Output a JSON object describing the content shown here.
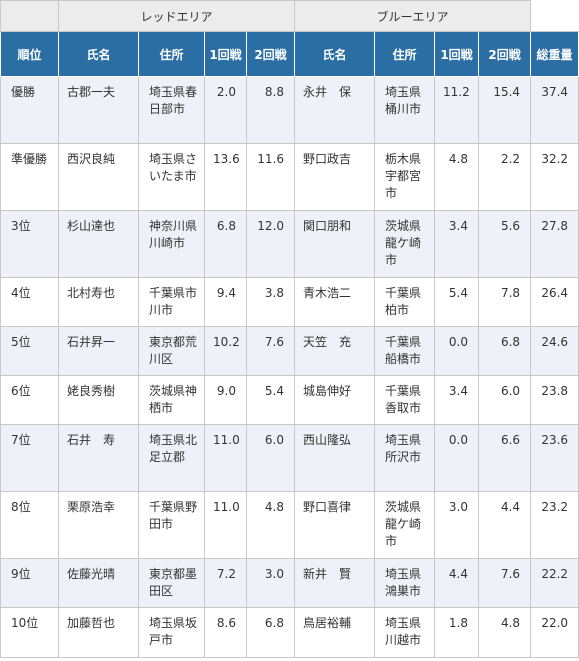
{
  "groups": {
    "red": "レッドエリア",
    "blue": "ブルーエリア"
  },
  "headers": {
    "rank": "順位",
    "red_name": "氏名",
    "red_address": "住所",
    "red_round1": "1回戦",
    "red_round2": "2回戦",
    "blue_name": "氏名",
    "blue_address": "住所",
    "blue_round1": "1回戦",
    "blue_round2": "2回戦",
    "total": "総重量"
  },
  "rows": [
    {
      "rank": "優勝",
      "red_name": "古郡一夫",
      "red_address": "埼玉県春日部市",
      "red_r1": "2.0",
      "red_r2": "8.8",
      "blue_name": "永井　保",
      "blue_address": "埼玉県桶川市",
      "blue_r1": "11.2",
      "blue_r2": "15.4",
      "total": "37.4"
    },
    {
      "rank": "準優勝",
      "red_name": "西沢良純",
      "red_address": "埼玉県さいたま市",
      "red_r1": "13.6",
      "red_r2": "11.6",
      "blue_name": "野口政吉",
      "blue_address": "栃木県宇都宮市",
      "blue_r1": "4.8",
      "blue_r2": "2.2",
      "total": "32.2"
    },
    {
      "rank": "3位",
      "red_name": "杉山達也",
      "red_address": "神奈川県川崎市",
      "red_r1": "6.8",
      "red_r2": "12.0",
      "blue_name": "関口朋和",
      "blue_address": "茨城県龍ケ崎市",
      "blue_r1": "3.4",
      "blue_r2": "5.6",
      "total": "27.8"
    },
    {
      "rank": "4位",
      "red_name": "北村寿也",
      "red_address": "千葉県市川市",
      "red_r1": "9.4",
      "red_r2": "3.8",
      "blue_name": "青木浩二",
      "blue_address": "千葉県柏市",
      "blue_r1": "5.4",
      "blue_r2": "7.8",
      "total": "26.4"
    },
    {
      "rank": "5位",
      "red_name": "石井昇一",
      "red_address": "東京都荒川区",
      "red_r1": "10.2",
      "red_r2": "7.6",
      "blue_name": "天笠　充",
      "blue_address": "千葉県船橋市",
      "blue_r1": "0.0",
      "blue_r2": "6.8",
      "total": "24.6"
    },
    {
      "rank": "6位",
      "red_name": "姥良秀樹",
      "red_address": "茨城県神栖市",
      "red_r1": "9.0",
      "red_r2": "5.4",
      "blue_name": "城島伸好",
      "blue_address": "千葉県香取市",
      "blue_r1": "3.4",
      "blue_r2": "6.0",
      "total": "23.8"
    },
    {
      "rank": "7位",
      "red_name": "石井　寿",
      "red_address": "埼玉県北足立郡",
      "red_r1": "11.0",
      "red_r2": "6.0",
      "blue_name": "西山隆弘",
      "blue_address": "埼玉県所沢市",
      "blue_r1": "0.0",
      "blue_r2": "6.6",
      "total": "23.6"
    },
    {
      "rank": "8位",
      "red_name": "栗原浩幸",
      "red_address": "千葉県野田市",
      "red_r1": "11.0",
      "red_r2": "4.8",
      "blue_name": "野口喜律",
      "blue_address": "茨城県龍ケ崎市",
      "blue_r1": "3.0",
      "blue_r2": "4.4",
      "total": "23.2"
    },
    {
      "rank": "9位",
      "red_name": "佐藤光晴",
      "red_address": "東京都墨田区",
      "red_r1": "7.2",
      "red_r2": "3.0",
      "blue_name": "新井　賢",
      "blue_address": "埼玉県鴻巣市",
      "blue_r1": "4.4",
      "blue_r2": "7.6",
      "total": "22.2"
    },
    {
      "rank": "10位",
      "red_name": "加藤哲也",
      "red_address": "埼玉県坂戸市",
      "red_r1": "8.6",
      "red_r2": "6.8",
      "blue_name": "鳥居裕輔",
      "blue_address": "埼玉県川越市",
      "blue_r1": "1.8",
      "blue_r2": "4.8",
      "total": "22.0"
    }
  ]
}
